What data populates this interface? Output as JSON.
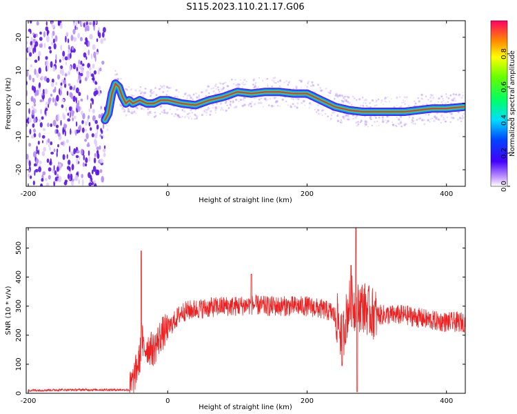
{
  "title": "S115.2023.110.21.17.G06",
  "colors": {
    "spectrogram_trace": [
      "#2200ff",
      "#00c8ff",
      "#00ff66",
      "#ff2a2a"
    ],
    "snr_line": "#ee2222"
  },
  "chart_data": [
    {
      "type": "heatmap",
      "name": "spectrogram",
      "xlabel": "Height of straight line (km)",
      "ylabel": "Frequency (Hz)",
      "xlim": [
        -203,
        427
      ],
      "ylim": [
        -25,
        25
      ],
      "xticks": [
        -200,
        0,
        200,
        400
      ],
      "yticks": [
        -20,
        -10,
        0,
        10,
        20
      ],
      "noise_region_x": [
        -200,
        -90
      ],
      "ridge": {
        "x": [
          -90,
          -85,
          -80,
          -75,
          -70,
          -65,
          -60,
          -55,
          -50,
          -40,
          -30,
          -20,
          -10,
          0,
          20,
          40,
          60,
          80,
          100,
          120,
          140,
          160,
          180,
          200,
          220,
          240,
          260,
          280,
          300,
          320,
          340,
          360,
          380,
          400,
          425
        ],
        "y": [
          -5,
          -3,
          3,
          6,
          5,
          2,
          0,
          1,
          0,
          1,
          0,
          0,
          1,
          1,
          0,
          -0.5,
          1,
          2,
          3.5,
          3,
          3.5,
          3.5,
          3,
          3,
          1,
          -1,
          -2,
          -2.5,
          -2.5,
          -2.5,
          -2.5,
          -2,
          -1.5,
          -1.5,
          -1
        ]
      },
      "colorbar": {
        "label": "Normalized spectral amplitude",
        "range": [
          0,
          1
        ],
        "ticks": [
          "0.0",
          "0.2",
          "0.4",
          "0.6",
          "0.8"
        ]
      }
    },
    {
      "type": "line",
      "name": "snr",
      "xlabel": "Height of straight line (km)",
      "ylabel": "SNR (10 * v/v)",
      "xlim": [
        -203,
        427
      ],
      "ylim": [
        0,
        570
      ],
      "xticks": [
        -200,
        0,
        200,
        400
      ],
      "yticks": [
        0,
        100,
        200,
        300,
        400,
        500
      ],
      "envelope": {
        "x": [
          -200,
          -150,
          -100,
          -55,
          -50,
          -40,
          -37,
          -35,
          -30,
          -20,
          -10,
          0,
          20,
          40,
          60,
          80,
          100,
          120,
          140,
          160,
          180,
          200,
          220,
          235,
          245,
          250,
          255,
          260,
          265,
          270,
          275,
          280,
          290,
          300,
          320,
          340,
          360,
          380,
          400,
          427
        ],
        "y": [
          10,
          12,
          12,
          12,
          40,
          120,
          200,
          150,
          160,
          150,
          200,
          220,
          280,
          290,
          295,
          300,
          300,
          305,
          300,
          300,
          300,
          300,
          290,
          280,
          250,
          180,
          250,
          300,
          320,
          280,
          300,
          300,
          280,
          270,
          270,
          270,
          260,
          250,
          245,
          245
        ]
      },
      "spikes": [
        {
          "x": -38,
          "y": 490
        },
        {
          "x": 270,
          "y": 570
        },
        {
          "x": 272,
          "y": 5
        },
        {
          "x": 263,
          "y": 440
        },
        {
          "x": 120,
          "y": 410
        },
        {
          "x": 250,
          "y": 95
        }
      ]
    }
  ]
}
